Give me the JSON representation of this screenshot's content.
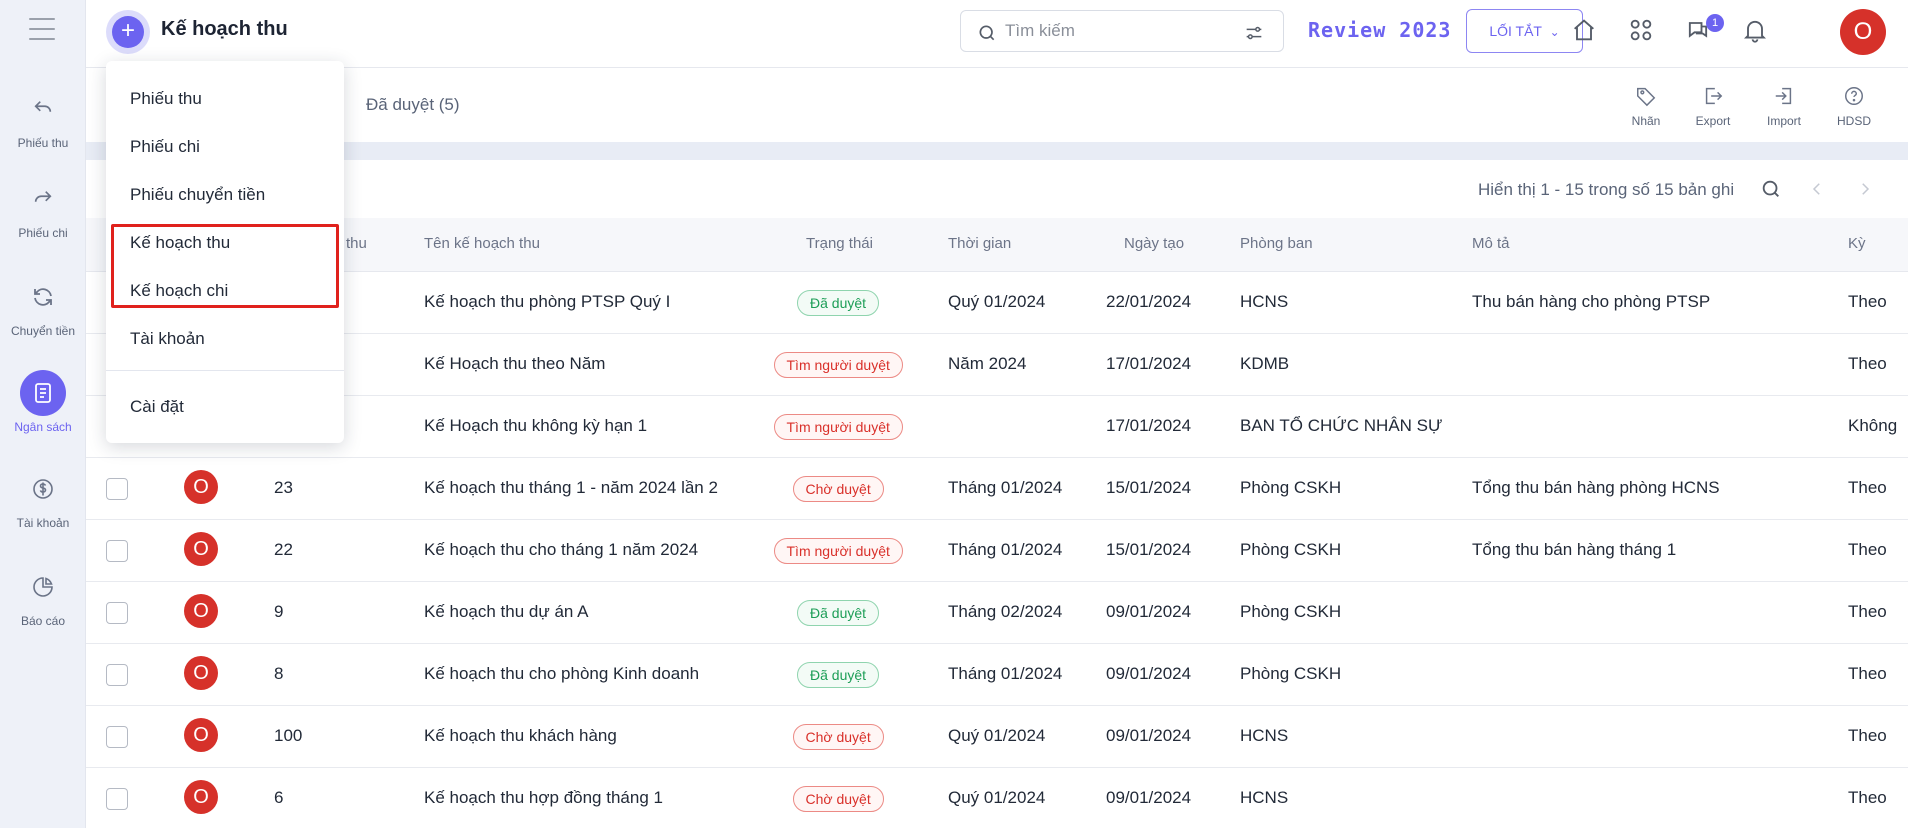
{
  "sidebar": {
    "items": [
      {
        "label": "Phiếu thu",
        "icon": "undo-arrow-icon"
      },
      {
        "label": "Phiếu chi",
        "icon": "redo-arrow-icon"
      },
      {
        "label": "Chuyển tiền",
        "icon": "refresh-icon"
      },
      {
        "label": "Ngân sách",
        "icon": "document-list-icon",
        "active": true
      },
      {
        "label": "Tài khoản",
        "icon": "dollar-circle-icon"
      },
      {
        "label": "Báo cáo",
        "icon": "pie-chart-icon"
      }
    ]
  },
  "header": {
    "title": "Kế hoạch thu",
    "search_placeholder": "Tìm kiếm",
    "review_label": "Review 2023",
    "shortcut_label": "LỐI TẮT",
    "notification_count": "1",
    "user_initial": "O"
  },
  "tabs": {
    "approved": "Đã duyệt (5)"
  },
  "actions": [
    {
      "label": "Nhãn",
      "icon": "tag-icon"
    },
    {
      "label": "Export",
      "icon": "export-icon"
    },
    {
      "label": "Import",
      "icon": "import-icon"
    },
    {
      "label": "HDSD",
      "icon": "help-icon"
    }
  ],
  "pagination": {
    "text": "Hiển thị 1 - 15 trong số 15 bản ghi"
  },
  "table": {
    "columns": {
      "code": "ch thu",
      "name": "Tên kế hoạch thu",
      "status": "Trạng thái",
      "period": "Thời gian",
      "created": "Ngày tạo",
      "department": "Phòng ban",
      "description": "Mô tả",
      "cycle": "Kỳ"
    },
    "rows": [
      {
        "code": "",
        "name": "Kế hoạch thu phòng PTSP Quý I",
        "status": "Đã duyệt",
        "status_color": "green",
        "period": "Quý 01/2024",
        "created": "22/01/2024",
        "department": "HCNS",
        "description": "Thu bán hàng cho phòng PTSP",
        "cycle": "Theo",
        "hidden_left": true
      },
      {
        "code": "",
        "name": "Kế Hoạch thu theo Năm",
        "status": "Tìm người duyệt",
        "status_color": "red",
        "period": "Năm 2024",
        "created": "17/01/2024",
        "department": "KDMB",
        "description": "",
        "cycle": "Theo",
        "hidden_left": true
      },
      {
        "code": "",
        "name": "Kế Hoạch thu không kỳ hạn 1",
        "status": "Tìm người duyệt",
        "status_color": "red",
        "period": "",
        "created": "17/01/2024",
        "department": "BAN TỔ CHỨC NHÂN SỰ",
        "description": "",
        "cycle": "Không",
        "hidden_left": true
      },
      {
        "code": "23",
        "name": "Kế hoạch thu tháng 1 - năm 2024 lần 2",
        "status": "Chờ duyệt",
        "status_color": "red",
        "period": "Tháng 01/2024",
        "created": "15/01/2024",
        "department": "Phòng CSKH",
        "description": "Tổng thu bán hàng phòng HCNS",
        "cycle": "Theo"
      },
      {
        "code": "22",
        "name": "Kế hoạch thu cho tháng 1 năm 2024",
        "status": "Tìm người duyệt",
        "status_color": "red",
        "period": "Tháng 01/2024",
        "created": "15/01/2024",
        "department": "Phòng CSKH",
        "description": "Tổng thu bán hàng tháng 1",
        "cycle": "Theo"
      },
      {
        "code": "9",
        "name": "Kế hoạch thu dự án A",
        "status": "Đã duyệt",
        "status_color": "green",
        "period": "Tháng 02/2024",
        "created": "09/01/2024",
        "department": "Phòng CSKH",
        "description": "",
        "cycle": "Theo"
      },
      {
        "code": "8",
        "name": "Kế hoạch thu cho phòng Kinh doanh",
        "status": "Đã duyệt",
        "status_color": "green",
        "period": "Tháng 01/2024",
        "created": "09/01/2024",
        "department": "Phòng CSKH",
        "description": "",
        "cycle": "Theo"
      },
      {
        "code": "100",
        "name": "Kế hoạch thu khách hàng",
        "status": "Chờ duyệt",
        "status_color": "red",
        "period": "Quý 01/2024",
        "created": "09/01/2024",
        "department": "HCNS",
        "description": "",
        "cycle": "Theo"
      },
      {
        "code": "6",
        "name": "Kế hoạch thu hợp đồng tháng 1",
        "status": "Chờ duyệt",
        "status_color": "red",
        "period": "Quý 01/2024",
        "created": "09/01/2024",
        "department": "HCNS",
        "description": "",
        "cycle": "Theo"
      }
    ]
  },
  "dropdown": {
    "items": [
      {
        "label": "Phiếu thu"
      },
      {
        "label": "Phiếu chi"
      },
      {
        "label": "Phiếu chuyển tiền"
      },
      {
        "label": "Kế hoạch thu"
      },
      {
        "label": "Kế hoạch chi"
      },
      {
        "label": "Tài khoản"
      },
      {
        "label": "Cài đặt"
      }
    ]
  },
  "colors": {
    "accent": "#6c63f0",
    "danger": "#d6312a",
    "success": "#1d9e57",
    "highlight": "#e0211c"
  }
}
